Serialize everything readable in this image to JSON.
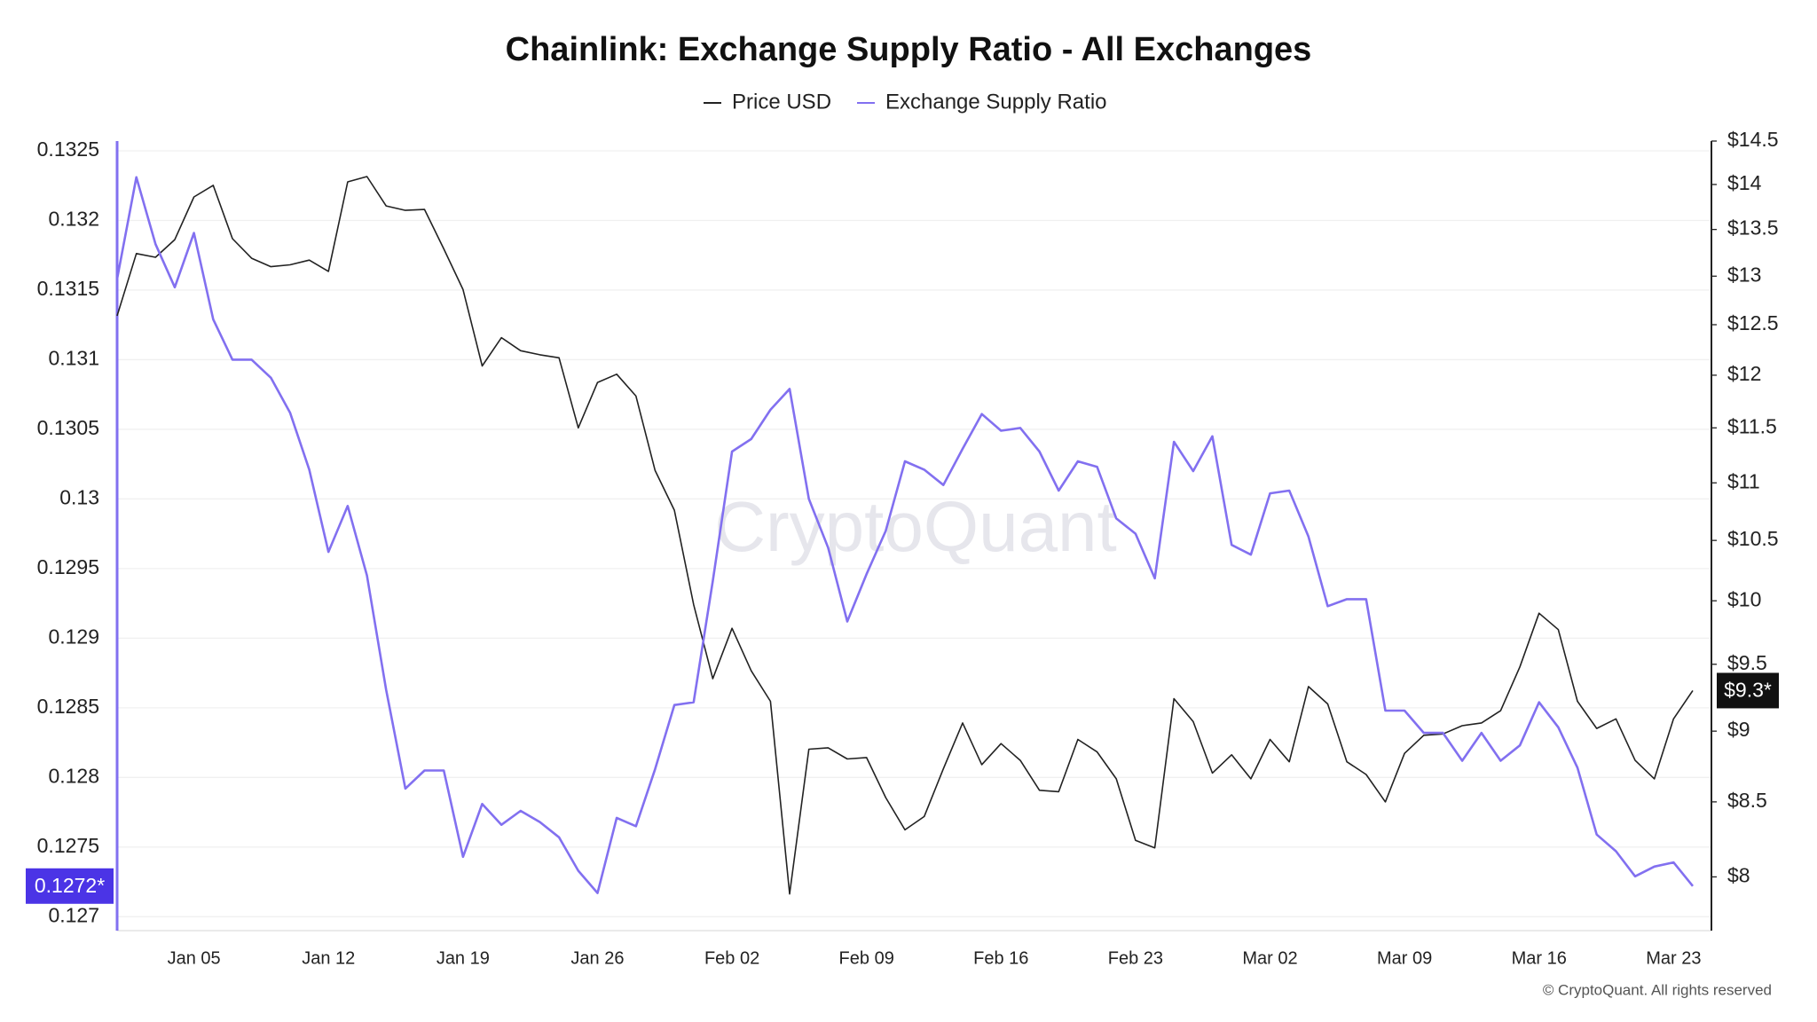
{
  "chart_data": {
    "type": "line",
    "title": "Chainlink: Exchange Supply Ratio - All Exchanges",
    "categories": [
      null,
      null,
      null,
      null,
      "Jan 05",
      null,
      null,
      null,
      null,
      null,
      null,
      "Jan 12",
      null,
      null,
      null,
      null,
      null,
      null,
      "Jan 19",
      null,
      null,
      null,
      null,
      null,
      null,
      "Jan 26",
      null,
      null,
      null,
      null,
      null,
      null,
      "Feb 02",
      null,
      null,
      null,
      null,
      null,
      null,
      "Feb 09",
      null,
      null,
      null,
      null,
      null,
      null,
      "Feb 16",
      null,
      null,
      null,
      null,
      null,
      null,
      "Feb 23",
      null,
      null,
      null,
      null,
      null,
      null,
      "Mar 02",
      null,
      null,
      null,
      null,
      null,
      null,
      "Mar 09",
      null,
      null,
      null,
      null,
      null,
      null,
      "Mar 16",
      null,
      null,
      null,
      null,
      null,
      null,
      "Mar 23",
      null
    ],
    "series": [
      {
        "name": "Price USD",
        "color": "#222222",
        "axis": "y2",
        "last_label": "$9.3*",
        "values": [
          12.59,
          13.24,
          13.2,
          13.39,
          13.86,
          13.99,
          13.4,
          13.19,
          13.1,
          13.12,
          13.17,
          13.05,
          14.03,
          14.09,
          13.76,
          13.71,
          13.72,
          13.29,
          12.86,
          12.09,
          12.37,
          12.24,
          12.2,
          12.17,
          11.5,
          11.93,
          12.01,
          11.8,
          11.11,
          10.76,
          9.97,
          9.39,
          9.78,
          9.45,
          9.22,
          7.89,
          8.87,
          8.88,
          8.8,
          8.81,
          8.53,
          8.31,
          8.4,
          8.73,
          9.06,
          8.76,
          8.91,
          8.79,
          8.58,
          8.57,
          8.94,
          8.85,
          8.66,
          8.24,
          8.19,
          9.24,
          9.07,
          8.7,
          8.83,
          8.66,
          8.94,
          8.78,
          9.33,
          9.2,
          8.78,
          8.69,
          8.5,
          8.84,
          8.97,
          8.98,
          9.04,
          9.06,
          9.15,
          9.48,
          9.9,
          9.77,
          9.22,
          9.02,
          9.09,
          8.79,
          8.66,
          9.09,
          9.3
        ]
      },
      {
        "name": "Exchange Supply Ratio",
        "color": "#8270f0",
        "last_label": "0.1272*",
        "values": [
          0.13158,
          0.13231,
          0.13183,
          0.13152,
          0.13191,
          0.13129,
          0.131,
          0.131,
          0.13087,
          0.13062,
          0.13021,
          0.12962,
          0.12995,
          0.12945,
          0.12863,
          0.12792,
          0.12805,
          0.12805,
          0.12743,
          0.12781,
          0.12766,
          0.12776,
          0.12768,
          0.12757,
          0.12733,
          0.12717,
          0.12771,
          0.12765,
          0.12806,
          0.12852,
          0.12854,
          0.12941,
          0.13034,
          0.13043,
          0.13064,
          0.13079,
          0.13,
          0.12965,
          0.12912,
          0.12946,
          0.12977,
          0.13027,
          0.13021,
          0.1301,
          0.13036,
          0.13061,
          0.13049,
          0.13051,
          0.13034,
          0.13006,
          0.13027,
          0.13023,
          0.12986,
          0.12975,
          0.12943,
          0.13041,
          0.1302,
          0.13045,
          0.12967,
          0.1296,
          0.13004,
          0.13006,
          0.12973,
          0.12923,
          0.12928,
          0.12928,
          0.12848,
          0.12848,
          0.12832,
          0.12832,
          0.12812,
          0.12832,
          0.12812,
          0.12823,
          0.12854,
          0.12836,
          0.12807,
          0.12759,
          0.12747,
          0.12729,
          0.12736,
          0.12739,
          0.12722
        ]
      }
    ],
    "ylim": [
      0.1269,
      0.13257
    ],
    "yticks": [
      0.127,
      0.1275,
      0.128,
      0.1285,
      0.129,
      0.1295,
      0.13,
      0.1305,
      0.131,
      0.1315,
      0.132,
      0.1325
    ],
    "y2lim": [
      7.66,
      14.5
    ],
    "y2log": true,
    "y2ticks": [
      {
        "value": 8,
        "label": "$8"
      },
      {
        "value": 8.5,
        "label": "$8.5"
      },
      {
        "value": 9,
        "label": "$9"
      },
      {
        "value": 9.5,
        "label": "$9.5"
      },
      {
        "value": 10,
        "label": "$10"
      },
      {
        "value": 10.5,
        "label": "$10.5"
      },
      {
        "value": 11,
        "label": "$11"
      },
      {
        "value": 11.5,
        "label": "$11.5"
      },
      {
        "value": 12,
        "label": "$12"
      },
      {
        "value": 12.5,
        "label": "$12.5"
      },
      {
        "value": 13,
        "label": "$13"
      },
      {
        "value": 13.5,
        "label": "$13.5"
      },
      {
        "value": 14,
        "label": "$14"
      },
      {
        "value": 14.5,
        "label": "$14.5"
      }
    ],
    "grid": true,
    "watermark": "CryptoQuant",
    "credit": "© CryptoQuant. All rights reserved"
  }
}
